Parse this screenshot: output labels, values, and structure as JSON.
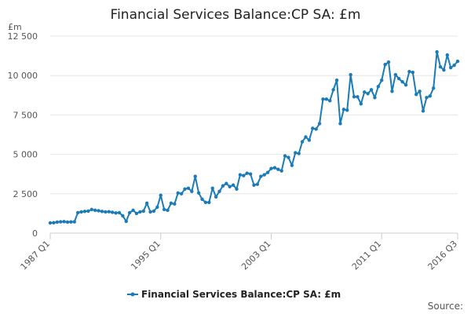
{
  "chart_data": {
    "type": "line",
    "title": "Financial Services Balance:CP SA: £m",
    "ylabel": "£m",
    "xlabel": "",
    "ylim": [
      0,
      12500
    ],
    "yticks": [
      0,
      2500,
      5000,
      7500,
      10000,
      12500
    ],
    "ytick_labels": [
      "0",
      "2 500",
      "5 000",
      "7 500",
      "10 000",
      "12 500"
    ],
    "xticks": [
      {
        "index": 0,
        "label": "1987 Q1"
      },
      {
        "index": 32,
        "label": "1995 Q1"
      },
      {
        "index": 64,
        "label": "2003 Q1"
      },
      {
        "index": 96,
        "label": "2011 Q1"
      },
      {
        "index": 118,
        "label": "2016 Q3"
      }
    ],
    "legend_position": "bottom",
    "series": [
      {
        "name": "Financial Services Balance:CP SA: £m",
        "color": "#1b7bb7",
        "values": [
          650,
          660,
          700,
          720,
          730,
          700,
          710,
          720,
          1300,
          1350,
          1380,
          1400,
          1500,
          1450,
          1420,
          1380,
          1350,
          1360,
          1320,
          1280,
          1300,
          1100,
          750,
          1300,
          1450,
          1250,
          1350,
          1400,
          1900,
          1350,
          1400,
          1650,
          2400,
          1500,
          1450,
          1900,
          1850,
          2550,
          2500,
          2800,
          2850,
          2650,
          3600,
          2550,
          2150,
          1950,
          1950,
          2850,
          2300,
          2650,
          3000,
          3150,
          2950,
          3050,
          2800,
          3700,
          3650,
          3800,
          3750,
          3050,
          3100,
          3600,
          3700,
          3850,
          4100,
          4150,
          4050,
          3950,
          4900,
          4800,
          4300,
          5100,
          5050,
          5800,
          6100,
          5900,
          6650,
          6600,
          6950,
          8500,
          8500,
          8400,
          9100,
          9700,
          6950,
          7850,
          7800,
          10050,
          8650,
          8650,
          8200,
          8950,
          8850,
          9100,
          8600,
          9300,
          9700,
          10700,
          10850,
          9000,
          10050,
          9800,
          9600,
          9400,
          10250,
          10200,
          8800,
          9000,
          7750,
          8600,
          8700,
          9200,
          11500,
          10550,
          10350,
          11300,
          10500,
          10650,
          10900
        ]
      }
    ],
    "source": "Source:"
  }
}
